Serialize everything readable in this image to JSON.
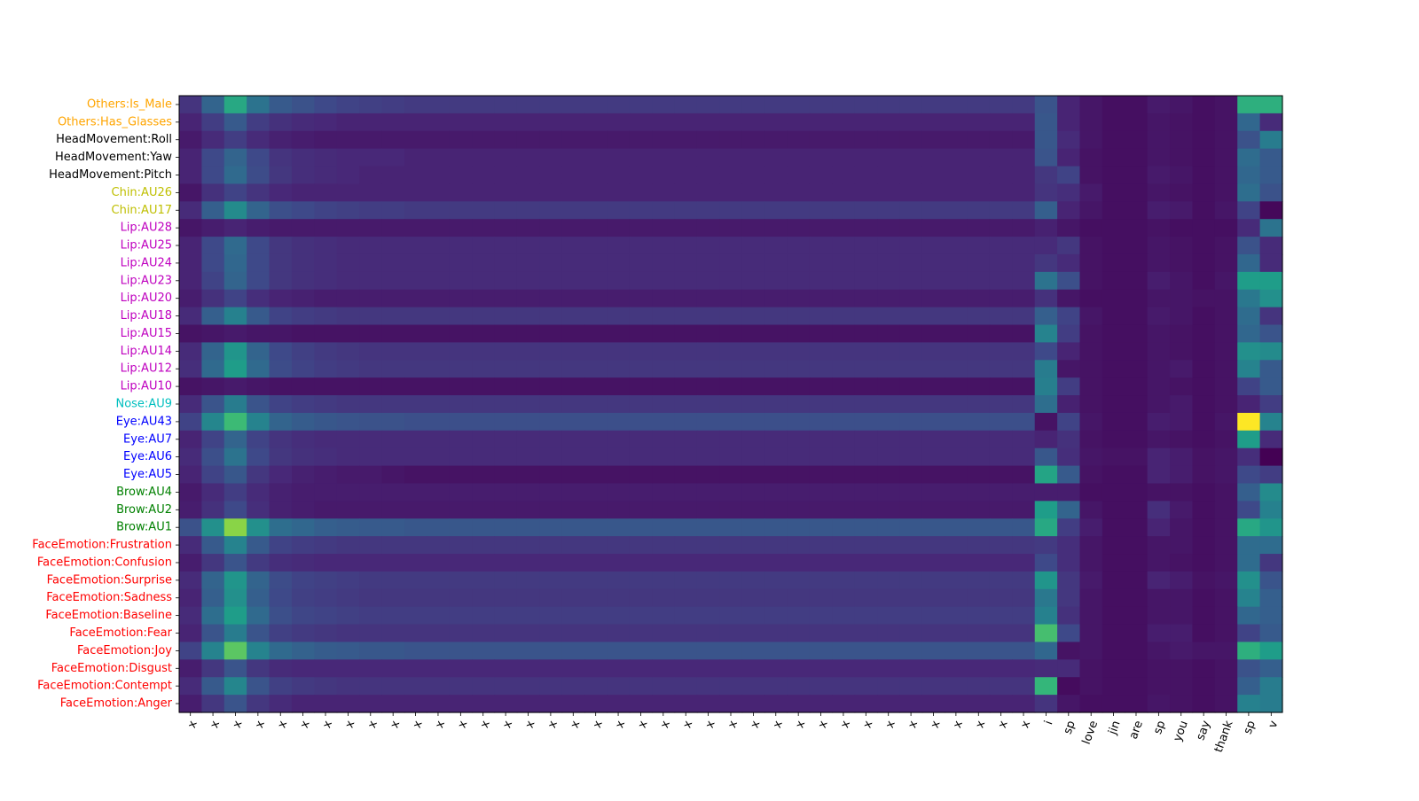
{
  "chart_data": {
    "type": "heatmap",
    "title": "",
    "xlabel": "",
    "ylabel": "",
    "colormap": "viridis",
    "x_tick_labels": [
      "x",
      "x",
      "x",
      "x",
      "x",
      "x",
      "x",
      "x",
      "x",
      "x",
      "x",
      "x",
      "x",
      "x",
      "x",
      "x",
      "x",
      "x",
      "x",
      "x",
      "x",
      "x",
      "x",
      "x",
      "x",
      "x",
      "x",
      "x",
      "x",
      "x",
      "x",
      "x",
      "x",
      "x",
      "x",
      "x",
      "x",
      "x",
      "i",
      "sp",
      "love",
      "jin",
      "are",
      "sp",
      "you",
      "say",
      "thank",
      "sp",
      "v"
    ],
    "y_tick_labels": [
      {
        "label": "Others:Is_Male",
        "color": "#ffa500"
      },
      {
        "label": "Others:Has_Glasses",
        "color": "#ffa500"
      },
      {
        "label": "HeadMovement:Roll",
        "color": "#000000"
      },
      {
        "label": "HeadMovement:Yaw",
        "color": "#000000"
      },
      {
        "label": "HeadMovement:Pitch",
        "color": "#000000"
      },
      {
        "label": "Chin:AU26",
        "color": "#bfbf00"
      },
      {
        "label": "Chin:AU17",
        "color": "#bfbf00"
      },
      {
        "label": "Lip:AU28",
        "color": "#bf00bf"
      },
      {
        "label": "Lip:AU25",
        "color": "#bf00bf"
      },
      {
        "label": "Lip:AU24",
        "color": "#bf00bf"
      },
      {
        "label": "Lip:AU23",
        "color": "#bf00bf"
      },
      {
        "label": "Lip:AU20",
        "color": "#bf00bf"
      },
      {
        "label": "Lip:AU18",
        "color": "#bf00bf"
      },
      {
        "label": "Lip:AU15",
        "color": "#bf00bf"
      },
      {
        "label": "Lip:AU14",
        "color": "#bf00bf"
      },
      {
        "label": "Lip:AU12",
        "color": "#bf00bf"
      },
      {
        "label": "Lip:AU10",
        "color": "#bf00bf"
      },
      {
        "label": "Nose:AU9",
        "color": "#00bfbf"
      },
      {
        "label": "Eye:AU43",
        "color": "#0000ff"
      },
      {
        "label": "Eye:AU7",
        "color": "#0000ff"
      },
      {
        "label": "Eye:AU6",
        "color": "#0000ff"
      },
      {
        "label": "Eye:AU5",
        "color": "#0000ff"
      },
      {
        "label": "Brow:AU4",
        "color": "#008000"
      },
      {
        "label": "Brow:AU2",
        "color": "#008000"
      },
      {
        "label": "Brow:AU1",
        "color": "#008000"
      },
      {
        "label": "FaceEmotion:Frustration",
        "color": "#ff0000"
      },
      {
        "label": "FaceEmotion:Confusion",
        "color": "#ff0000"
      },
      {
        "label": "FaceEmotion:Surprise",
        "color": "#ff0000"
      },
      {
        "label": "FaceEmotion:Sadness",
        "color": "#ff0000"
      },
      {
        "label": "FaceEmotion:Baseline",
        "color": "#ff0000"
      },
      {
        "label": "FaceEmotion:Fear",
        "color": "#ff0000"
      },
      {
        "label": "FaceEmotion:Joy",
        "color": "#ff0000"
      },
      {
        "label": "FaceEmotion:Disgust",
        "color": "#ff0000"
      },
      {
        "label": "FaceEmotion:Contempt",
        "color": "#ff0000"
      },
      {
        "label": "FaceEmotion:Anger",
        "color": "#ff0000"
      }
    ],
    "row_profiles": [
      {
        "x_block": [
          0.15,
          0.32,
          0.6,
          0.38,
          0.28,
          0.25,
          0.22,
          0.2,
          0.19,
          0.18
        ],
        "x_rest": 0.17,
        "tail": [
          0.26,
          0.1,
          0.06,
          0.04,
          0.04,
          0.07,
          0.06,
          0.04,
          0.05,
          0.63,
          0.63
        ]
      },
      {
        "x_block": [
          0.1,
          0.18,
          0.28,
          0.18,
          0.14,
          0.12,
          0.11,
          0.1,
          0.1,
          0.1
        ],
        "x_rest": 0.1,
        "tail": [
          0.27,
          0.1,
          0.06,
          0.04,
          0.04,
          0.06,
          0.05,
          0.04,
          0.05,
          0.33,
          0.12
        ]
      },
      {
        "x_block": [
          0.07,
          0.12,
          0.18,
          0.12,
          0.09,
          0.08,
          0.07,
          0.07,
          0.07,
          0.07
        ],
        "x_rest": 0.07,
        "tail": [
          0.27,
          0.12,
          0.06,
          0.04,
          0.04,
          0.06,
          0.05,
          0.04,
          0.05,
          0.25,
          0.42
        ]
      },
      {
        "x_block": [
          0.1,
          0.22,
          0.32,
          0.22,
          0.15,
          0.13,
          0.12,
          0.11,
          0.11,
          0.11
        ],
        "x_rest": 0.1,
        "tail": [
          0.26,
          0.1,
          0.05,
          0.04,
          0.04,
          0.06,
          0.05,
          0.04,
          0.05,
          0.35,
          0.28
        ]
      },
      {
        "x_block": [
          0.1,
          0.22,
          0.34,
          0.23,
          0.16,
          0.13,
          0.12,
          0.11,
          0.1,
          0.1
        ],
        "x_rest": 0.1,
        "tail": [
          0.16,
          0.2,
          0.05,
          0.04,
          0.04,
          0.07,
          0.06,
          0.04,
          0.05,
          0.33,
          0.28
        ]
      },
      {
        "x_block": [
          0.06,
          0.14,
          0.2,
          0.15,
          0.11,
          0.1,
          0.1,
          0.1,
          0.1,
          0.1
        ],
        "x_rest": 0.1,
        "tail": [
          0.15,
          0.13,
          0.07,
          0.04,
          0.04,
          0.06,
          0.05,
          0.04,
          0.05,
          0.36,
          0.25
        ]
      },
      {
        "x_block": [
          0.12,
          0.3,
          0.48,
          0.32,
          0.24,
          0.22,
          0.2,
          0.19,
          0.18,
          0.18
        ],
        "x_rest": 0.17,
        "tail": [
          0.3,
          0.1,
          0.06,
          0.04,
          0.04,
          0.08,
          0.07,
          0.04,
          0.06,
          0.2,
          0.02
        ]
      },
      {
        "x_block": [
          0.06,
          0.08,
          0.1,
          0.08,
          0.07,
          0.07,
          0.07,
          0.07,
          0.07,
          0.07
        ],
        "x_rest": 0.07,
        "tail": [
          0.09,
          0.06,
          0.04,
          0.04,
          0.04,
          0.05,
          0.04,
          0.04,
          0.04,
          0.12,
          0.38
        ]
      },
      {
        "x_block": [
          0.1,
          0.22,
          0.34,
          0.22,
          0.16,
          0.14,
          0.13,
          0.12,
          0.12,
          0.12
        ],
        "x_rest": 0.12,
        "tail": [
          0.12,
          0.16,
          0.05,
          0.04,
          0.04,
          0.06,
          0.05,
          0.04,
          0.05,
          0.25,
          0.12
        ]
      },
      {
        "x_block": [
          0.1,
          0.22,
          0.33,
          0.22,
          0.16,
          0.14,
          0.13,
          0.12,
          0.12,
          0.12
        ],
        "x_rest": 0.12,
        "tail": [
          0.16,
          0.12,
          0.05,
          0.04,
          0.04,
          0.06,
          0.05,
          0.04,
          0.05,
          0.33,
          0.12
        ]
      },
      {
        "x_block": [
          0.1,
          0.2,
          0.32,
          0.22,
          0.16,
          0.14,
          0.13,
          0.12,
          0.12,
          0.12
        ],
        "x_rest": 0.12,
        "tail": [
          0.38,
          0.24,
          0.05,
          0.04,
          0.04,
          0.08,
          0.06,
          0.04,
          0.06,
          0.55,
          0.55
        ]
      },
      {
        "x_block": [
          0.08,
          0.14,
          0.2,
          0.13,
          0.1,
          0.09,
          0.08,
          0.08,
          0.08,
          0.08
        ],
        "x_rest": 0.08,
        "tail": [
          0.14,
          0.06,
          0.04,
          0.04,
          0.04,
          0.06,
          0.06,
          0.05,
          0.05,
          0.4,
          0.5
        ]
      },
      {
        "x_block": [
          0.12,
          0.3,
          0.44,
          0.28,
          0.2,
          0.18,
          0.17,
          0.16,
          0.16,
          0.16
        ],
        "x_rest": 0.16,
        "tail": [
          0.3,
          0.2,
          0.06,
          0.04,
          0.04,
          0.07,
          0.06,
          0.04,
          0.05,
          0.35,
          0.15
        ]
      },
      {
        "x_block": [
          0.05,
          0.06,
          0.07,
          0.06,
          0.06,
          0.05,
          0.05,
          0.05,
          0.05,
          0.05
        ],
        "x_rest": 0.05,
        "tail": [
          0.45,
          0.18,
          0.05,
          0.04,
          0.04,
          0.06,
          0.05,
          0.04,
          0.05,
          0.33,
          0.26
        ]
      },
      {
        "x_block": [
          0.12,
          0.32,
          0.52,
          0.32,
          0.22,
          0.19,
          0.17,
          0.16,
          0.15,
          0.15
        ],
        "x_rest": 0.15,
        "tail": [
          0.22,
          0.1,
          0.05,
          0.04,
          0.04,
          0.06,
          0.05,
          0.04,
          0.05,
          0.5,
          0.48
        ]
      },
      {
        "x_block": [
          0.13,
          0.34,
          0.55,
          0.34,
          0.23,
          0.2,
          0.18,
          0.17,
          0.16,
          0.16
        ],
        "x_rest": 0.16,
        "tail": [
          0.42,
          0.06,
          0.05,
          0.04,
          0.04,
          0.06,
          0.07,
          0.04,
          0.05,
          0.45,
          0.28
        ]
      },
      {
        "x_block": [
          0.05,
          0.06,
          0.07,
          0.06,
          0.05,
          0.05,
          0.05,
          0.05,
          0.05,
          0.05
        ],
        "x_rest": 0.05,
        "tail": [
          0.43,
          0.18,
          0.05,
          0.04,
          0.04,
          0.06,
          0.05,
          0.04,
          0.05,
          0.2,
          0.28
        ]
      },
      {
        "x_block": [
          0.12,
          0.26,
          0.42,
          0.26,
          0.2,
          0.18,
          0.17,
          0.16,
          0.16,
          0.16
        ],
        "x_rest": 0.16,
        "tail": [
          0.36,
          0.09,
          0.05,
          0.04,
          0.04,
          0.06,
          0.07,
          0.04,
          0.05,
          0.1,
          0.18
        ]
      },
      {
        "x_block": [
          0.2,
          0.46,
          0.68,
          0.45,
          0.32,
          0.29,
          0.27,
          0.26,
          0.25,
          0.25
        ],
        "x_rest": 0.24,
        "tail": [
          0.05,
          0.2,
          0.06,
          0.04,
          0.04,
          0.08,
          0.07,
          0.04,
          0.06,
          1.0,
          0.45
        ]
      },
      {
        "x_block": [
          0.1,
          0.2,
          0.32,
          0.2,
          0.15,
          0.13,
          0.12,
          0.12,
          0.12,
          0.12
        ],
        "x_rest": 0.12,
        "tail": [
          0.1,
          0.14,
          0.05,
          0.04,
          0.04,
          0.06,
          0.05,
          0.04,
          0.05,
          0.55,
          0.12
        ]
      },
      {
        "x_block": [
          0.12,
          0.24,
          0.38,
          0.22,
          0.16,
          0.14,
          0.13,
          0.12,
          0.12,
          0.12
        ],
        "x_rest": 0.12,
        "tail": [
          0.27,
          0.13,
          0.06,
          0.05,
          0.05,
          0.1,
          0.08,
          0.05,
          0.06,
          0.13,
          0.0
        ]
      },
      {
        "x_block": [
          0.1,
          0.2,
          0.27,
          0.16,
          0.11,
          0.09,
          0.08,
          0.07,
          0.07,
          0.06
        ],
        "x_rest": 0.05,
        "tail": [
          0.58,
          0.28,
          0.05,
          0.04,
          0.04,
          0.1,
          0.08,
          0.05,
          0.06,
          0.22,
          0.18
        ]
      },
      {
        "x_block": [
          0.07,
          0.12,
          0.18,
          0.12,
          0.09,
          0.08,
          0.08,
          0.08,
          0.08,
          0.08
        ],
        "x_rest": 0.08,
        "tail": [
          0.08,
          0.08,
          0.04,
          0.04,
          0.04,
          0.05,
          0.05,
          0.04,
          0.05,
          0.3,
          0.48
        ]
      },
      {
        "x_block": [
          0.08,
          0.14,
          0.22,
          0.13,
          0.09,
          0.08,
          0.07,
          0.07,
          0.07,
          0.07
        ],
        "x_rest": 0.07,
        "tail": [
          0.55,
          0.32,
          0.06,
          0.04,
          0.04,
          0.13,
          0.07,
          0.04,
          0.05,
          0.22,
          0.44
        ]
      },
      {
        "x_block": [
          0.25,
          0.5,
          0.82,
          0.5,
          0.36,
          0.33,
          0.3,
          0.29,
          0.28,
          0.28
        ],
        "x_rest": 0.27,
        "tail": [
          0.6,
          0.18,
          0.08,
          0.04,
          0.04,
          0.1,
          0.06,
          0.04,
          0.05,
          0.6,
          0.52
        ]
      },
      {
        "x_block": [
          0.12,
          0.28,
          0.45,
          0.28,
          0.2,
          0.18,
          0.17,
          0.16,
          0.16,
          0.16
        ],
        "x_rest": 0.16,
        "tail": [
          0.17,
          0.13,
          0.06,
          0.04,
          0.04,
          0.06,
          0.06,
          0.04,
          0.05,
          0.35,
          0.35
        ]
      },
      {
        "x_block": [
          0.08,
          0.16,
          0.26,
          0.17,
          0.13,
          0.12,
          0.11,
          0.11,
          0.11,
          0.11
        ],
        "x_rest": 0.11,
        "tail": [
          0.22,
          0.13,
          0.06,
          0.04,
          0.04,
          0.06,
          0.05,
          0.04,
          0.05,
          0.35,
          0.16
        ]
      },
      {
        "x_block": [
          0.12,
          0.32,
          0.52,
          0.32,
          0.23,
          0.2,
          0.19,
          0.18,
          0.17,
          0.17
        ],
        "x_rest": 0.17,
        "tail": [
          0.52,
          0.16,
          0.07,
          0.04,
          0.04,
          0.1,
          0.08,
          0.05,
          0.06,
          0.5,
          0.26
        ]
      },
      {
        "x_block": [
          0.1,
          0.3,
          0.5,
          0.3,
          0.22,
          0.19,
          0.18,
          0.17,
          0.16,
          0.16
        ],
        "x_rest": 0.16,
        "tail": [
          0.4,
          0.16,
          0.06,
          0.04,
          0.04,
          0.06,
          0.06,
          0.04,
          0.05,
          0.45,
          0.3
        ]
      },
      {
        "x_block": [
          0.12,
          0.36,
          0.55,
          0.34,
          0.24,
          0.21,
          0.2,
          0.19,
          0.18,
          0.18
        ],
        "x_rest": 0.18,
        "tail": [
          0.44,
          0.14,
          0.06,
          0.04,
          0.04,
          0.06,
          0.06,
          0.04,
          0.05,
          0.33,
          0.3
        ]
      },
      {
        "x_block": [
          0.1,
          0.26,
          0.42,
          0.26,
          0.19,
          0.17,
          0.16,
          0.15,
          0.15,
          0.15
        ],
        "x_rest": 0.15,
        "tail": [
          0.7,
          0.22,
          0.06,
          0.04,
          0.04,
          0.08,
          0.08,
          0.04,
          0.05,
          0.2,
          0.28
        ]
      },
      {
        "x_block": [
          0.2,
          0.45,
          0.74,
          0.45,
          0.34,
          0.31,
          0.29,
          0.28,
          0.27,
          0.27
        ],
        "x_rest": 0.26,
        "tail": [
          0.33,
          0.05,
          0.06,
          0.04,
          0.04,
          0.06,
          0.07,
          0.06,
          0.06,
          0.63,
          0.55
        ]
      },
      {
        "x_block": [
          0.08,
          0.16,
          0.26,
          0.16,
          0.12,
          0.11,
          0.11,
          0.11,
          0.11,
          0.11
        ],
        "x_rest": 0.11,
        "tail": [
          0.12,
          0.12,
          0.05,
          0.04,
          0.04,
          0.05,
          0.05,
          0.04,
          0.05,
          0.25,
          0.3
        ]
      },
      {
        "x_block": [
          0.12,
          0.28,
          0.46,
          0.26,
          0.19,
          0.17,
          0.16,
          0.15,
          0.15,
          0.15
        ],
        "x_rest": 0.15,
        "tail": [
          0.66,
          0.03,
          0.05,
          0.04,
          0.04,
          0.05,
          0.05,
          0.04,
          0.05,
          0.3,
          0.42
        ]
      },
      {
        "x_block": [
          0.08,
          0.16,
          0.26,
          0.16,
          0.12,
          0.1,
          0.1,
          0.1,
          0.1,
          0.1
        ],
        "x_rest": 0.1,
        "tail": [
          0.15,
          0.06,
          0.04,
          0.04,
          0.04,
          0.06,
          0.05,
          0.04,
          0.05,
          0.44,
          0.42
        ]
      }
    ]
  }
}
